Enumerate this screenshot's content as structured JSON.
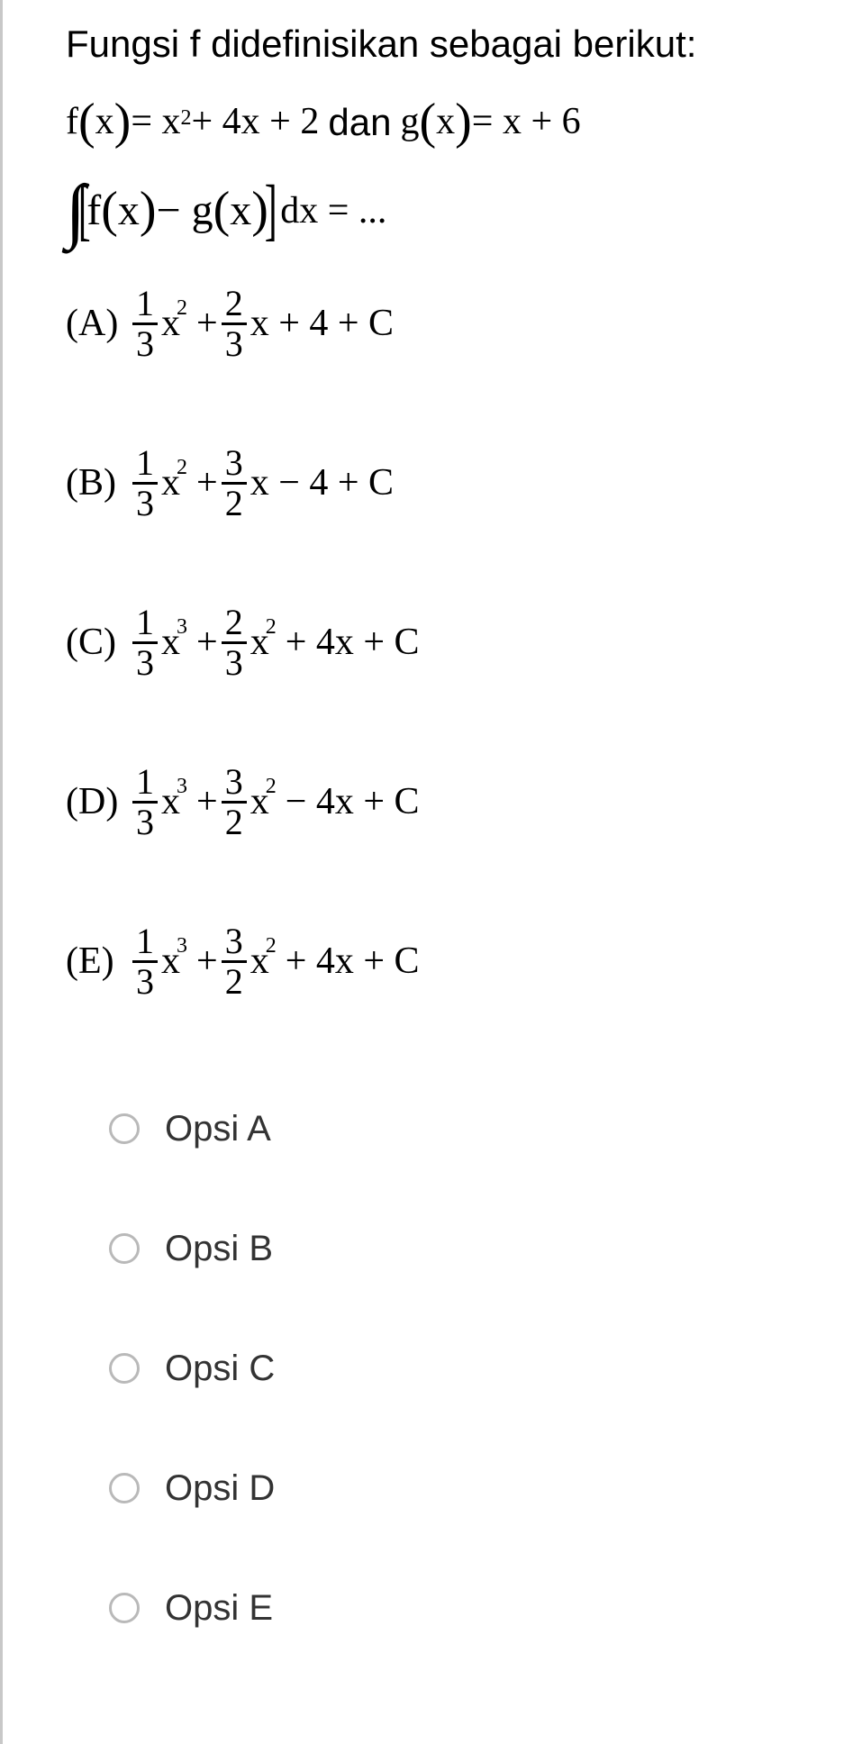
{
  "prompt": "Fungsi f didefinisikan sebagai berikut:",
  "functions": {
    "f_lhs": "f",
    "f_var": "x",
    "f_rhs_pre": "= x",
    "f_rhs_exp": "2",
    "f_rhs_post": " + 4x + 2",
    "connector": "dan",
    "g_lhs": "g",
    "g_var": "x",
    "g_rhs": "= x + 6"
  },
  "integral": {
    "inside_pre": "f",
    "inside_var1": "x",
    "inside_op": "− g",
    "inside_var2": "x",
    "tail": "dx  = ..."
  },
  "options": [
    {
      "label": "(A)",
      "parts": [
        {
          "type": "frac",
          "num": "1",
          "den": "3"
        },
        {
          "type": "xpow",
          "base": "x",
          "pow": "2"
        },
        {
          "type": "txt",
          "v": "+"
        },
        {
          "type": "frac",
          "num": "2",
          "den": "3"
        },
        {
          "type": "txt",
          "v": "x + 4 + C"
        }
      ]
    },
    {
      "label": "(B)",
      "parts": [
        {
          "type": "frac",
          "num": "1",
          "den": "3"
        },
        {
          "type": "xpow",
          "base": "x",
          "pow": "2"
        },
        {
          "type": "txt",
          "v": "+"
        },
        {
          "type": "frac",
          "num": "3",
          "den": "2"
        },
        {
          "type": "txt",
          "v": "x − 4 + C"
        }
      ]
    },
    {
      "label": "(C)",
      "parts": [
        {
          "type": "frac",
          "num": "1",
          "den": "3"
        },
        {
          "type": "xpow",
          "base": "x",
          "pow": "3"
        },
        {
          "type": "txt",
          "v": "+"
        },
        {
          "type": "frac",
          "num": "2",
          "den": "3"
        },
        {
          "type": "xpow",
          "base": "x",
          "pow": "2"
        },
        {
          "type": "txt",
          "v": "+ 4x + C"
        }
      ]
    },
    {
      "label": "(D)",
      "parts": [
        {
          "type": "frac",
          "num": "1",
          "den": "3"
        },
        {
          "type": "xpow",
          "base": "x",
          "pow": "3"
        },
        {
          "type": "txt",
          "v": "+"
        },
        {
          "type": "frac",
          "num": "3",
          "den": "2"
        },
        {
          "type": "xpow",
          "base": "x",
          "pow": "2"
        },
        {
          "type": "txt",
          "v": "− 4x + C"
        }
      ]
    },
    {
      "label": "(E)",
      "parts": [
        {
          "type": "frac",
          "num": "1",
          "den": "3"
        },
        {
          "type": "xpow",
          "base": "x",
          "pow": "3"
        },
        {
          "type": "txt",
          "v": "+"
        },
        {
          "type": "frac",
          "num": "3",
          "den": "2"
        },
        {
          "type": "xpow",
          "base": "x",
          "pow": "2"
        },
        {
          "type": "txt",
          "v": "+ 4x + C"
        }
      ]
    }
  ],
  "radios": [
    "Opsi A",
    "Opsi B",
    "Opsi C",
    "Opsi D",
    "Opsi E"
  ],
  "colors": {
    "bg": "#ffffff",
    "text": "#000000",
    "radio_border": "#b9b9b9",
    "left_border": "#c8c8c8",
    "radio_label": "#333333"
  },
  "fonts": {
    "body_size": 42,
    "sup_size": 24,
    "frac_size": 40,
    "radio_label_size": 40
  }
}
